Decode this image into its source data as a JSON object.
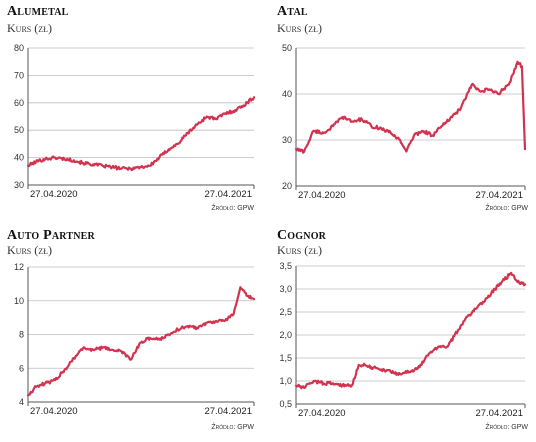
{
  "chart_data": [
    {
      "type": "line",
      "title": "Alumetal",
      "ylabel": "Kurs (zł)",
      "ylim": [
        30,
        80
      ],
      "yticks": [
        30,
        40,
        50,
        60,
        70,
        80
      ],
      "xlim": [
        "2020-04-27",
        "2021-04-27"
      ],
      "xticks": [
        "27.04.2020",
        "27.04.2021"
      ],
      "source": "Źródło: GPW",
      "color": "#d2334f",
      "series": [
        {
          "x": [
            "2020-04-27",
            "2020-05-10",
            "2020-05-25",
            "2020-06-10",
            "2020-06-25",
            "2020-07-10",
            "2020-07-25",
            "2020-08-10",
            "2020-08-25",
            "2020-09-10",
            "2020-09-25",
            "2020-10-10",
            "2020-10-25",
            "2020-11-10",
            "2020-11-25",
            "2020-12-10",
            "2020-12-25",
            "2021-01-10",
            "2021-01-25",
            "2021-02-10",
            "2021-02-25",
            "2021-03-10",
            "2021-03-25",
            "2021-04-10",
            "2021-04-27"
          ],
          "y": [
            37,
            38.5,
            39.5,
            40,
            39.5,
            39,
            38,
            37.5,
            37,
            36.5,
            36,
            36,
            36.5,
            37,
            40,
            43,
            45,
            49,
            52,
            55,
            54,
            56,
            57,
            59,
            62
          ]
        }
      ]
    },
    {
      "type": "line",
      "title": "Atal",
      "ylabel": "Kurs (zł)",
      "ylim": [
        20,
        50
      ],
      "yticks": [
        20,
        30,
        40,
        50
      ],
      "xlim": [
        "2020-04-27",
        "2021-04-27"
      ],
      "xticks": [
        "27.04.2020",
        "27.04.2021"
      ],
      "source": "Źródło: GPW",
      "color": "#d2334f",
      "series": [
        {
          "x": [
            "2020-04-27",
            "2020-05-10",
            "2020-05-25",
            "2020-06-10",
            "2020-06-25",
            "2020-07-10",
            "2020-07-25",
            "2020-08-10",
            "2020-08-25",
            "2020-09-10",
            "2020-09-25",
            "2020-10-10",
            "2020-10-20",
            "2020-11-01",
            "2020-11-15",
            "2020-12-01",
            "2020-12-15",
            "2021-01-01",
            "2021-01-15",
            "2021-02-01",
            "2021-02-15",
            "2021-03-01",
            "2021-03-15",
            "2021-04-01",
            "2021-04-15",
            "2021-04-22",
            "2021-04-27"
          ],
          "y": [
            28,
            27.5,
            32,
            31.5,
            33,
            35,
            34,
            34.5,
            33,
            32.5,
            31.5,
            30,
            27.5,
            31,
            32,
            31,
            33,
            35,
            37,
            42,
            40.5,
            41,
            40,
            42,
            47,
            46,
            28
          ]
        }
      ]
    },
    {
      "type": "line",
      "title": "Auto Partner",
      "ylabel": "Kurs (zł)",
      "ylim": [
        4,
        12
      ],
      "yticks": [
        4,
        6,
        8,
        10,
        12
      ],
      "xlim": [
        "2020-04-27",
        "2021-04-27"
      ],
      "xticks": [
        "27.04.2020",
        "27.04.2021"
      ],
      "source": "Źródło: GPW",
      "color": "#d2334f",
      "series": [
        {
          "x": [
            "2020-04-27",
            "2020-05-10",
            "2020-05-25",
            "2020-06-10",
            "2020-06-25",
            "2020-07-10",
            "2020-07-25",
            "2020-08-10",
            "2020-08-25",
            "2020-09-10",
            "2020-09-25",
            "2020-10-10",
            "2020-10-25",
            "2020-11-10",
            "2020-11-25",
            "2020-12-10",
            "2020-12-25",
            "2021-01-10",
            "2021-01-25",
            "2021-02-10",
            "2021-02-25",
            "2021-03-10",
            "2021-03-25",
            "2021-04-05",
            "2021-04-15",
            "2021-04-27"
          ],
          "y": [
            4.4,
            4.9,
            5.1,
            5.3,
            5.9,
            6.6,
            7.2,
            7.1,
            7.2,
            7.1,
            7.0,
            6.5,
            7.5,
            7.8,
            7.7,
            8.0,
            8.3,
            8.5,
            8.4,
            8.7,
            8.8,
            8.8,
            9.2,
            10.8,
            10.3,
            10.1
          ]
        }
      ]
    },
    {
      "type": "line",
      "title": "Cognor",
      "ylabel": "Kurs (zł)",
      "ylim": [
        0.5,
        3.5
      ],
      "yticks": [
        "0,5",
        "1,0",
        "1,5",
        "2,0",
        "2,5",
        "3,0",
        "3,5"
      ],
      "ytick_values": [
        0.5,
        1.0,
        1.5,
        2.0,
        2.5,
        3.0,
        3.5
      ],
      "xlim": [
        "2020-04-27",
        "2021-04-27"
      ],
      "xticks": [
        "27.04.2020",
        "27.04.2021"
      ],
      "source": "Źródło: GPW",
      "color": "#d2334f",
      "series": [
        {
          "x": [
            "2020-04-27",
            "2020-05-10",
            "2020-05-25",
            "2020-06-10",
            "2020-06-25",
            "2020-07-10",
            "2020-07-25",
            "2020-08-05",
            "2020-08-15",
            "2020-08-25",
            "2020-09-10",
            "2020-09-25",
            "2020-10-10",
            "2020-10-25",
            "2020-11-10",
            "2020-11-25",
            "2020-12-10",
            "2020-12-25",
            "2021-01-10",
            "2021-01-25",
            "2021-02-10",
            "2021-02-25",
            "2021-03-10",
            "2021-03-25",
            "2021-04-05",
            "2021-04-15",
            "2021-04-27"
          ],
          "y": [
            0.9,
            0.85,
            1.0,
            0.95,
            0.95,
            0.9,
            0.9,
            1.35,
            1.35,
            1.3,
            1.25,
            1.2,
            1.15,
            1.2,
            1.3,
            1.6,
            1.75,
            1.75,
            2.1,
            2.4,
            2.6,
            2.8,
            3.0,
            3.2,
            3.35,
            3.15,
            3.1
          ]
        }
      ]
    }
  ]
}
